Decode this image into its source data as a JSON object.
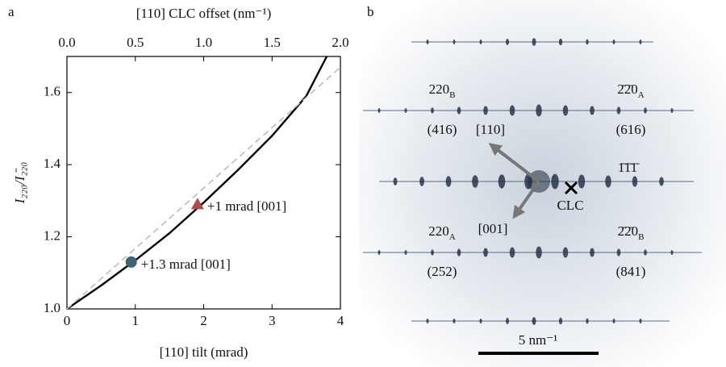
{
  "chart_data": {
    "type": "line",
    "panel": "a",
    "xlabel": "[110] tilt (mrad)",
    "x2label": "[110] CLC offset (nm⁻¹)",
    "ylabel": "I₂₂₀/I₂̄₂₀",
    "xlim": [
      0,
      4
    ],
    "xticks": [
      0,
      1,
      2,
      3,
      4
    ],
    "x2lim": [
      0,
      2
    ],
    "x2ticks": [
      {
        "value": 0,
        "label": "0.0"
      },
      0.5,
      {
        "value": 1,
        "label": "1.0"
      },
      1.5,
      {
        "value": 2,
        "label": "2.0"
      }
    ],
    "ylim": [
      1.0,
      1.7
    ],
    "yticks": [
      {
        "value": 1,
        "label": "1.0"
      },
      1.2,
      1.4,
      1.6
    ],
    "series": [
      {
        "style": "solid",
        "color": "#000000",
        "x": [
          0,
          0.5,
          1,
          1.5,
          2,
          2.5,
          3,
          3.5,
          3.8
        ],
        "values": [
          1.0,
          1.065,
          1.135,
          1.21,
          1.295,
          1.385,
          1.48,
          1.59,
          1.7
        ]
      },
      {
        "style": "dashed",
        "color": "#bbbbbb",
        "x": [
          0,
          4
        ],
        "values": [
          1.0,
          1.67
        ]
      }
    ],
    "points": [
      {
        "label": "+1 mrad [001]",
        "x": 1.91,
        "y": 1.29,
        "marker": "triangle",
        "color": "#b0484e"
      },
      {
        "label": "+1.3 mrad [001]",
        "x": 0.94,
        "y": 1.13,
        "marker": "circle",
        "color": "#3c6373"
      }
    ]
  },
  "panel_b": {
    "panel": "b",
    "labels": [
      {
        "text": "220",
        "sub": "B"
      },
      {
        "text": "(416)"
      },
      {
        "text": "2̄2̄0",
        "sub": "A"
      },
      {
        "text": "(616)"
      },
      {
        "text": "[110]"
      },
      {
        "text": "[001]"
      },
      {
        "text": "1̄1̄1̄"
      },
      {
        "text": "CLC"
      },
      {
        "text": "220",
        "sub": "A"
      },
      {
        "text": "(252)"
      },
      {
        "text": "2̄2̄0",
        "sub": "B"
      },
      {
        "text": "(841)"
      }
    ],
    "scale_bar": "5 nm⁻¹"
  }
}
